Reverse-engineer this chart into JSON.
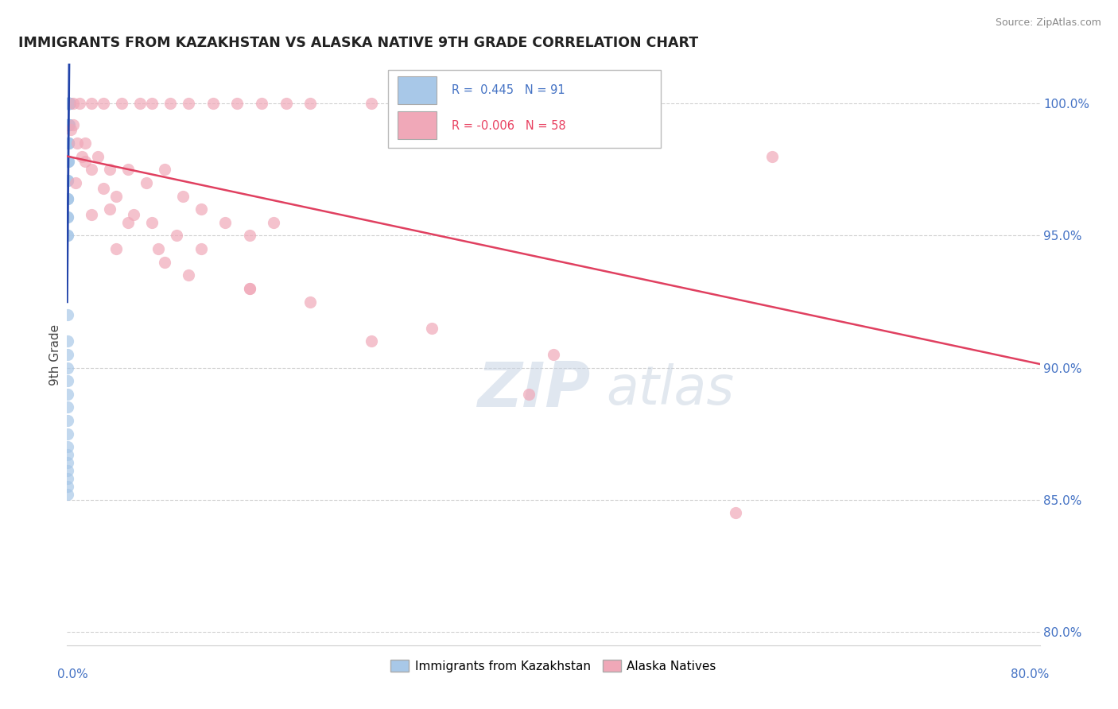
{
  "title": "IMMIGRANTS FROM KAZAKHSTAN VS ALASKA NATIVE 9TH GRADE CORRELATION CHART",
  "source_text": "Source: ZipAtlas.com",
  "ylabel": "9th Grade",
  "xlim": [
    0.0,
    80.0
  ],
  "ylim": [
    79.5,
    101.5
  ],
  "yticks": [
    80.0,
    85.0,
    90.0,
    95.0,
    100.0
  ],
  "ytick_labels": [
    "80.0%",
    "85.0%",
    "90.0%",
    "95.0%",
    "100.0%"
  ],
  "blue_color": "#A8C8E8",
  "pink_color": "#F0A8B8",
  "blue_line_color": "#2244AA",
  "pink_line_color": "#E04060",
  "watermark_zip": "ZIP",
  "watermark_atlas": "atlas",
  "blue_x": [
    0.05,
    0.05,
    0.05,
    0.06,
    0.06,
    0.06,
    0.07,
    0.07,
    0.07,
    0.08,
    0.08,
    0.08,
    0.09,
    0.09,
    0.09,
    0.1,
    0.1,
    0.1,
    0.1,
    0.11,
    0.11,
    0.11,
    0.12,
    0.12,
    0.13,
    0.13,
    0.14,
    0.14,
    0.15,
    0.15,
    0.16,
    0.17,
    0.18,
    0.19,
    0.2,
    0.21,
    0.22,
    0.05,
    0.05,
    0.06,
    0.06,
    0.07,
    0.07,
    0.08,
    0.09,
    0.1,
    0.11,
    0.12,
    0.13,
    0.14,
    0.15,
    0.05,
    0.05,
    0.06,
    0.07,
    0.08,
    0.09,
    0.1,
    0.11,
    0.12,
    0.05,
    0.06,
    0.07,
    0.08,
    0.09,
    0.05,
    0.06,
    0.07,
    0.05,
    0.06,
    0.07,
    0.05,
    0.06,
    0.05,
    0.06,
    0.05,
    0.05,
    0.05,
    0.05,
    0.05,
    0.05,
    0.05,
    0.05,
    0.05,
    0.05,
    0.05,
    0.05,
    0.05,
    0.05,
    0.05,
    0.05
  ],
  "blue_y": [
    100.0,
    100.0,
    100.0,
    100.0,
    100.0,
    100.0,
    100.0,
    100.0,
    100.0,
    100.0,
    100.0,
    100.0,
    100.0,
    100.0,
    100.0,
    100.0,
    100.0,
    100.0,
    100.0,
    100.0,
    100.0,
    100.0,
    100.0,
    100.0,
    100.0,
    100.0,
    100.0,
    100.0,
    100.0,
    100.0,
    100.0,
    100.0,
    100.0,
    100.0,
    100.0,
    100.0,
    100.0,
    99.2,
    99.2,
    99.2,
    99.2,
    99.2,
    99.2,
    99.2,
    99.2,
    99.2,
    99.2,
    99.2,
    99.2,
    99.2,
    99.2,
    98.5,
    98.5,
    98.5,
    98.5,
    98.5,
    98.5,
    98.5,
    98.5,
    98.5,
    97.8,
    97.8,
    97.8,
    97.8,
    97.8,
    97.1,
    97.1,
    97.1,
    96.4,
    96.4,
    96.4,
    95.7,
    95.7,
    95.0,
    95.0,
    92.0,
    91.0,
    90.5,
    90.0,
    89.5,
    89.0,
    88.5,
    88.0,
    87.5,
    87.0,
    86.7,
    86.4,
    86.1,
    85.8,
    85.5,
    85.2
  ],
  "pink_x": [
    0.5,
    1.0,
    2.0,
    3.0,
    4.5,
    6.0,
    7.0,
    8.5,
    10.0,
    12.0,
    14.0,
    16.0,
    18.0,
    20.0,
    25.0,
    30.0,
    35.0,
    42.0,
    1.5,
    2.5,
    3.5,
    5.0,
    6.5,
    8.0,
    9.5,
    11.0,
    13.0,
    15.0,
    17.0,
    0.3,
    0.8,
    1.2,
    2.0,
    3.0,
    4.0,
    5.5,
    7.0,
    9.0,
    11.0,
    0.5,
    1.5,
    3.5,
    5.0,
    7.5,
    10.0,
    15.0,
    20.0,
    30.0,
    40.0,
    58.0,
    0.7,
    2.0,
    4.0,
    8.0,
    15.0,
    25.0,
    38.0,
    55.0
  ],
  "pink_y": [
    100.0,
    100.0,
    100.0,
    100.0,
    100.0,
    100.0,
    100.0,
    100.0,
    100.0,
    100.0,
    100.0,
    100.0,
    100.0,
    100.0,
    100.0,
    100.0,
    100.0,
    100.0,
    98.5,
    98.0,
    97.5,
    97.5,
    97.0,
    97.5,
    96.5,
    96.0,
    95.5,
    95.0,
    95.5,
    99.0,
    98.5,
    98.0,
    97.5,
    96.8,
    96.5,
    95.8,
    95.5,
    95.0,
    94.5,
    99.2,
    97.8,
    96.0,
    95.5,
    94.5,
    93.5,
    93.0,
    92.5,
    91.5,
    90.5,
    98.0,
    97.0,
    95.8,
    94.5,
    94.0,
    93.0,
    91.0,
    89.0,
    84.5
  ]
}
